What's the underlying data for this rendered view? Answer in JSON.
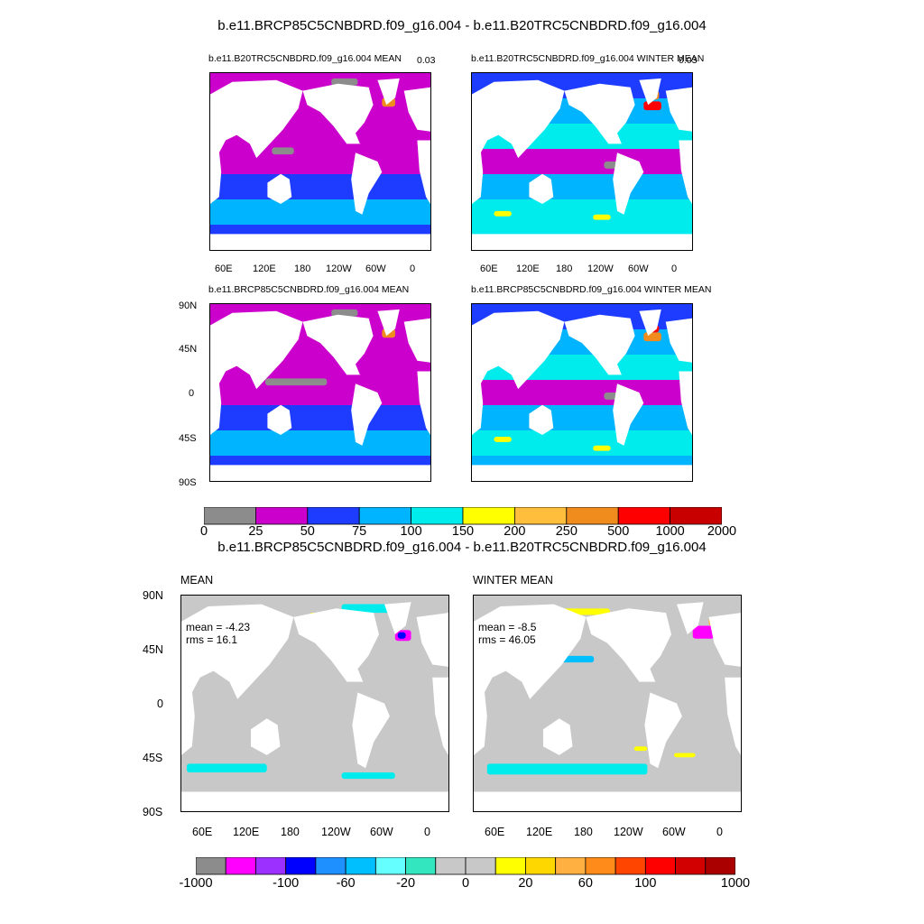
{
  "top": {
    "title": "b.e11.BRCP85C5CNBDRD.f09_g16.004 - b.e11.B20TRC5CNBDRD.f09_g16.004",
    "panels": [
      {
        "title": "b.e11.B20TRC5CNBDRD.f09_g16.004 MEAN",
        "corner": "0.03"
      },
      {
        "title": "b.e11.B20TRC5CNBDRD.f09_g16.004 WINTER MEAN",
        "corner": "0.03"
      },
      {
        "title": "b.e11.BRCP85C5CNBDRD.f09_g16.004 MEAN"
      },
      {
        "title": "b.e11.BRCP85C5CNBDRD.f09_g16.004 WINTER MEAN"
      }
    ],
    "lat_ticks": [
      "90N",
      "45N",
      "0",
      "45S",
      "90S"
    ],
    "lon_ticks": [
      "60E",
      "120E",
      "180",
      "120W",
      "60W",
      "0"
    ],
    "colorbar": {
      "labels": [
        "0",
        "25",
        "50",
        "75",
        "100",
        "150",
        "200",
        "250",
        "500",
        "1000",
        "2000"
      ],
      "colors": [
        "#8c8c8c",
        "#cc00cc",
        "#1e3cff",
        "#00b4ff",
        "#00ecec",
        "#ffff00",
        "#ffbe3c",
        "#f08c1e",
        "#ff0000",
        "#c80000"
      ]
    }
  },
  "bottom": {
    "title": "b.e11.BRCP85C5CNBDRD.f09_g16.004 - b.e11.B20TRC5CNBDRD.f09_g16.004",
    "panels": [
      {
        "title": "MEAN",
        "mean": "mean = -4.23",
        "rms": "rms = 16.1"
      },
      {
        "title": "WINTER MEAN",
        "mean": "mean = -8.5",
        "rms": "rms = 46.05"
      }
    ],
    "lat_ticks": [
      "90N",
      "45N",
      "0",
      "45S",
      "90S"
    ],
    "lon_ticks": [
      "60E",
      "120E",
      "180",
      "120W",
      "60W",
      "0"
    ],
    "colorbar": {
      "labels": [
        "-1000",
        "-100",
        "-60",
        "-20",
        "0",
        "20",
        "60",
        "100",
        "1000"
      ],
      "colors": [
        "#8c8c8c",
        "#ff00ff",
        "#9b30ff",
        "#0000ff",
        "#1e90ff",
        "#00bfff",
        "#66ffff",
        "#33e6c0",
        "#c8c8c8",
        "#c8c8c8",
        "#ffff00",
        "#ffd700",
        "#ffb040",
        "#ff8c1a",
        "#ff4500",
        "#ff0000",
        "#d20000",
        "#aa0000"
      ]
    }
  },
  "chart_data": [
    {
      "type": "heatmap",
      "title": "b.e11.B20TRC5CNBDRD.f09_g16.004 MEAN",
      "xlabel": "",
      "ylabel": "",
      "x_ticks": [
        "60E",
        "120E",
        "180",
        "120W",
        "60W",
        "0"
      ],
      "y_ticks": [
        "90N",
        "45N",
        "0",
        "45S",
        "90S"
      ],
      "levels": [
        0,
        25,
        50,
        75,
        100,
        150,
        200,
        250,
        500,
        1000,
        2000
      ]
    },
    {
      "type": "heatmap",
      "title": "b.e11.B20TRC5CNBDRD.f09_g16.004 WINTER MEAN",
      "levels": [
        0,
        25,
        50,
        75,
        100,
        150,
        200,
        250,
        500,
        1000,
        2000
      ]
    },
    {
      "type": "heatmap",
      "title": "b.e11.BRCP85C5CNBDRD.f09_g16.004 MEAN",
      "levels": [
        0,
        25,
        50,
        75,
        100,
        150,
        200,
        250,
        500,
        1000,
        2000
      ]
    },
    {
      "type": "heatmap",
      "title": "b.e11.BRCP85C5CNBDRD.f09_g16.004 WINTER MEAN",
      "levels": [
        0,
        25,
        50,
        75,
        100,
        150,
        200,
        250,
        500,
        1000,
        2000
      ]
    },
    {
      "type": "heatmap",
      "title": "MEAN",
      "mean": -4.23,
      "rms": 16.1,
      "levels": [
        -1000,
        -100,
        -60,
        -20,
        0,
        20,
        60,
        100,
        1000
      ]
    },
    {
      "type": "heatmap",
      "title": "WINTER MEAN",
      "mean": -8.5,
      "rms": 46.05,
      "levels": [
        -1000,
        -100,
        -60,
        -20,
        0,
        20,
        60,
        100,
        1000
      ]
    }
  ]
}
